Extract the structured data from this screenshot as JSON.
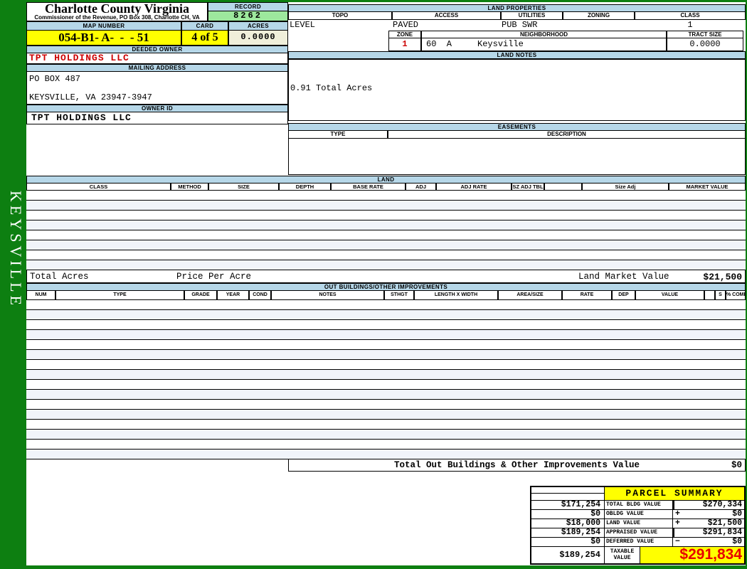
{
  "colors": {
    "frame_green": "#0d7f11",
    "header_blue": "#b6d7e8",
    "highlight_yellow": "#ffff00",
    "record_green": "#9de89d",
    "acres_beige": "#f0efda",
    "row_stripe": "#f1f4fa",
    "accent_red": "#cc0000",
    "taxable_red": "#e80000"
  },
  "sidebar": {
    "district_label": "KEYSVILLE"
  },
  "header": {
    "county_title": "Charlotte County Virginia",
    "commissioner_line": "Commissioner of the Revenue, PO Box 308, Charlotte CH, VA",
    "record_label": "RECORD",
    "record_number": "8262",
    "map_number_label": "MAP NUMBER",
    "map_number": "054-B1- A-  -  - 51",
    "card_label": "CARD",
    "card": "4 of 5",
    "acres_label": "ACRES",
    "acres": "0.0000"
  },
  "owner": {
    "deeded_owner_label": "DEEDED OWNER",
    "deeded_owner": "TPT HOLDINGS LLC",
    "mailing_address_label": "MAILING ADDRESS",
    "address_line1": "PO BOX 487",
    "address_line2": "KEYSVILLE, VA 23947-3947",
    "owner_id_label": "OWNER ID",
    "owner_id": "TPT HOLDINGS LLC"
  },
  "land_properties": {
    "section_label": "LAND PROPERTIES",
    "headers": [
      "TOPO",
      "ACCESS",
      "UTILITIES",
      "ZONING",
      "CLASS"
    ],
    "topo": "LEVEL",
    "access": "PAVED",
    "utilities": "PUB SWR",
    "zoning": "",
    "class": "1",
    "zone_label": "ZONE",
    "zone": "1",
    "neighborhood_label": "NEIGHBORHOOD",
    "neighborhood_value": "60  A     Keysville",
    "tract_size_label": "TRACT SIZE",
    "tract_size": "0.0000"
  },
  "land_notes": {
    "section_label": "LAND NOTES",
    "note": "0.91 Total Acres"
  },
  "easements": {
    "section_label": "EASEMENTS",
    "type_label": "TYPE",
    "description_label": "DESCRIPTION"
  },
  "land_table": {
    "section_label": "LAND",
    "columns": [
      "CLASS",
      "METHOD",
      "SIZE",
      "DEPTH",
      "BASE RATE",
      "ADJ",
      "ADJ RATE",
      "SZ ADJ TBL",
      "",
      "Size Adj",
      "MARKET VALUE"
    ],
    "empty_row_count": 8,
    "totals": {
      "total_acres_label": "Total Acres",
      "price_per_acre_label": "Price Per Acre",
      "market_value_label": "Land Market Value",
      "market_value": "$21,500"
    }
  },
  "out_buildings": {
    "section_label": "OUT BUILDINGS/OTHER IMPROVEMENTS",
    "columns": [
      "NUM",
      "TYPE",
      "GRADE",
      "YEAR",
      "COND",
      "NOTES",
      "STHGT",
      "LENGTH X WIDTH",
      "AREA/SIZE",
      "RATE",
      "DEP",
      "VALUE",
      "",
      "S",
      "% COMP"
    ],
    "empty_row_count": 16,
    "total_label": "Total Out Buildings & Other Improvements Value",
    "total_value": "$0"
  },
  "parcel_summary": {
    "title": "PARCEL SUMMARY",
    "rows": [
      {
        "prior": "$171,254",
        "label": "TOTAL BLDG VALUE",
        "op": "",
        "value": "$270,334"
      },
      {
        "prior": "$0",
        "label": "OBLDG VALUE",
        "op": "+",
        "value": "$0"
      },
      {
        "prior": "$18,000",
        "label": "LAND VALUE",
        "op": "+",
        "value": "$21,500"
      },
      {
        "prior": "$189,254",
        "label": "APPRAISED VALUE",
        "op": "",
        "value": "$291,834"
      },
      {
        "prior": "$0",
        "label": "DEFERRED VALUE",
        "op": "−",
        "value": "$0"
      }
    ],
    "taxable": {
      "prior": "$189,254",
      "label_line1": "TAXABLE",
      "label_line2": "VALUE",
      "value": "$291,834"
    }
  }
}
